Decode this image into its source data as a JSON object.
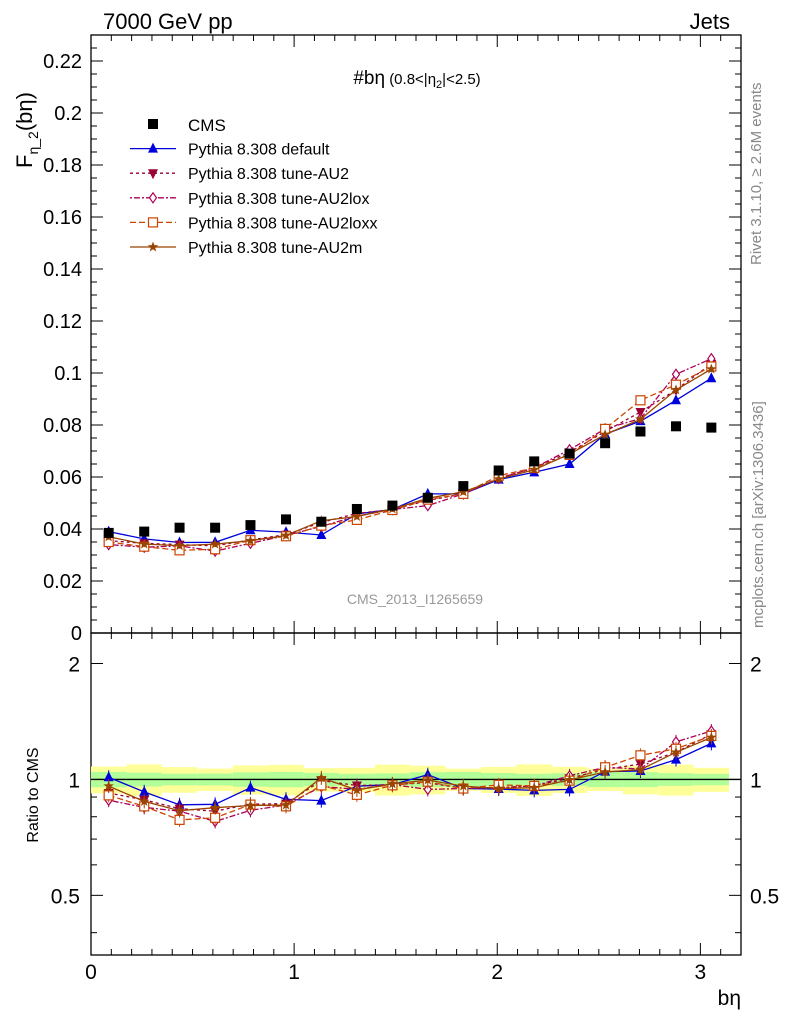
{
  "header": {
    "left": "7000 GeV pp",
    "right": "Jets"
  },
  "side_labels": {
    "rivet": "Rivet 3.1.10, ≥ 2.6M events",
    "mcplots": "mcplots.cern.ch [arXiv:1306.3436]"
  },
  "watermark": "CMS_2013_I1265659",
  "chart_data": {
    "type": "scatter",
    "title": "#bη",
    "title_sub": "(0.8<|η",
    "title_sub_idx": "2",
    "title_sub_tail": "|<2.5)",
    "xlabel": "bη",
    "ylabel_main": "F",
    "ylabel_sub": "η_2",
    "ylabel_tail": "(bη)",
    "ratio_ylabel": "Ratio to CMS",
    "xlim": [
      0,
      3.2
    ],
    "ylim_main": [
      0,
      0.23
    ],
    "ylim_ratio": [
      0.35,
      2.4
    ],
    "ratio_scale": "log",
    "x_ticks": [
      "0",
      "1",
      "2",
      "3"
    ],
    "y_ticks_main": [
      "0",
      "0.02",
      "0.04",
      "0.06",
      "0.08",
      "0.1",
      "0.12",
      "0.14",
      "0.16",
      "0.18",
      "0.2",
      "0.22"
    ],
    "y_ticks_ratio": [
      "0.5",
      "1",
      "2"
    ],
    "x": [
      0.087,
      0.262,
      0.436,
      0.611,
      0.785,
      0.96,
      1.134,
      1.309,
      1.484,
      1.658,
      1.833,
      2.007,
      2.182,
      2.356,
      2.531,
      2.705,
      2.88,
      3.054
    ],
    "data": {
      "name": "CMS",
      "color": "#000000",
      "values": [
        0.0385,
        0.039,
        0.0405,
        0.0405,
        0.0415,
        0.0437,
        0.0428,
        0.0477,
        0.049,
        0.052,
        0.0565,
        0.0625,
        0.066,
        0.069,
        0.073,
        0.0775,
        0.0795,
        0.079
      ]
    },
    "band": {
      "inner_frac": 0.04,
      "outer_frac": 0.08,
      "inner_color": "#b2ff9a",
      "outer_color": "#ffff9a"
    },
    "series": [
      {
        "name": "Pythia 8.308 default",
        "color": "#0000dd",
        "dash": "",
        "marker": "triangle",
        "values": [
          0.039,
          0.0362,
          0.0348,
          0.0349,
          0.0395,
          0.0388,
          0.0377,
          0.0458,
          0.0475,
          0.0535,
          0.0535,
          0.059,
          0.0618,
          0.065,
          0.0765,
          0.0815,
          0.0895,
          0.098
        ]
      },
      {
        "name": "Pythia 8.308 tune-AU2",
        "color": "#990033",
        "dash": "3,3",
        "marker": "triangle-down",
        "values": [
          0.0355,
          0.0345,
          0.034,
          0.0335,
          0.0358,
          0.0378,
          0.0425,
          0.046,
          0.0475,
          0.051,
          0.0535,
          0.0595,
          0.0635,
          0.0695,
          0.0775,
          0.085,
          0.0935,
          0.1035
        ]
      },
      {
        "name": "Pythia 8.308 tune-AU2lox",
        "color": "#aa0055",
        "dash": "2,2,6,2",
        "marker": "diamond",
        "values": [
          0.034,
          0.033,
          0.0335,
          0.0315,
          0.0345,
          0.0375,
          0.041,
          0.045,
          0.0475,
          0.049,
          0.0535,
          0.0595,
          0.0635,
          0.0705,
          0.0785,
          0.0825,
          0.0995,
          0.1055
        ]
      },
      {
        "name": "Pythia 8.308 tune-AU2loxx",
        "color": "#cc4400",
        "dash": "6,3",
        "marker": "square-open",
        "values": [
          0.035,
          0.0332,
          0.0318,
          0.0322,
          0.0357,
          0.0372,
          0.0413,
          0.0435,
          0.0473,
          0.0513,
          0.0535,
          0.0605,
          0.0635,
          0.0685,
          0.0785,
          0.0895,
          0.0955,
          0.1025
        ]
      },
      {
        "name": "Pythia 8.308 tune-AU2m",
        "color": "#994400",
        "dash": "",
        "marker": "star",
        "values": [
          0.037,
          0.0342,
          0.0336,
          0.0342,
          0.0355,
          0.0375,
          0.0432,
          0.0448,
          0.0477,
          0.0518,
          0.0543,
          0.0592,
          0.0628,
          0.0688,
          0.0763,
          0.0822,
          0.0935,
          0.1015
        ]
      }
    ]
  }
}
